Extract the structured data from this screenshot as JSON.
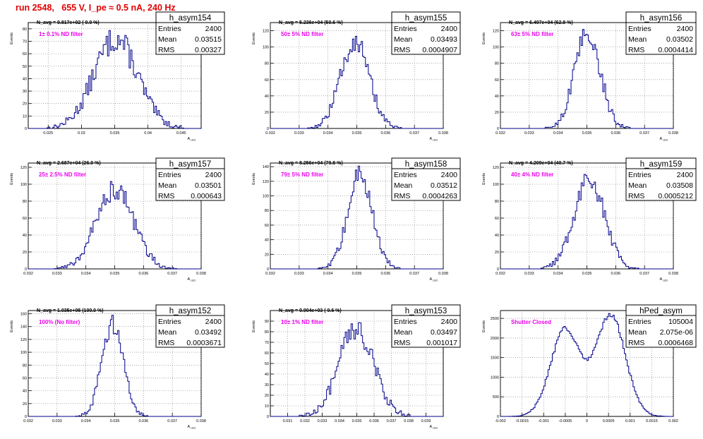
{
  "header": {
    "run_title": "run 2548,   655 V, I_pe ≈ 0.5 nA, 240 Hz"
  },
  "colors": {
    "histogram": "#00008b",
    "annotation_magenta": "#ee00ee",
    "title_red": "#e00000"
  },
  "chart_data": [
    {
      "type": "bar",
      "name": "h_asym154",
      "stats": {
        "entries_label": "Entries",
        "entries": "2400",
        "mean_label": "Mean",
        "mean": "0.03515",
        "rms_label": "RMS",
        "rms": "0.00327"
      },
      "navg": "N_avg = 9.817e+02 ( 0.9 %)",
      "note": "1± 0.1% ND filter",
      "ylabel": "Events",
      "xlabel": "A_LED",
      "xlim": [
        0.022,
        0.048
      ],
      "ylim": [
        0,
        85
      ],
      "xticks": [
        0.025,
        0.03,
        0.035,
        0.04,
        0.045
      ],
      "xtick_labels": [
        "0.025",
        "0.03",
        "0.035",
        "0.04",
        "0.045"
      ],
      "yticks": [
        0,
        10,
        20,
        30,
        40,
        50,
        60,
        70,
        80
      ],
      "ytick_labels": [
        "0",
        "10",
        "20",
        "30",
        "40",
        "50",
        "60",
        "70",
        "80"
      ],
      "gaussian": {
        "mean": 0.03515,
        "sigma": 0.00327,
        "peak": 72
      }
    },
    {
      "type": "bar",
      "name": "h_asym155",
      "stats": {
        "entries_label": "Entries",
        "entries": "2400",
        "mean_label": "Mean",
        "mean": "0.03493",
        "rms_label": "RMS",
        "rms": "0.0004907"
      },
      "navg": "N_avg = 5.236e+04 (50.6 %)",
      "note": "50± 5% ND filter",
      "ylabel": "Events",
      "xlabel": "A_LED",
      "xlim": [
        0.032,
        0.038
      ],
      "ylim": [
        0,
        130
      ],
      "xticks": [
        0.032,
        0.033,
        0.034,
        0.035,
        0.036,
        0.037,
        0.038
      ],
      "xtick_labels": [
        "0.032",
        "0.033",
        "0.034",
        "0.035",
        "0.036",
        "0.037",
        "0.038"
      ],
      "yticks": [
        0,
        20,
        40,
        60,
        80,
        100,
        120
      ],
      "ytick_labels": [
        "0",
        "20",
        "40",
        "60",
        "80",
        "100",
        "120"
      ],
      "gaussian": {
        "mean": 0.03493,
        "sigma": 0.0004907,
        "peak": 108
      }
    },
    {
      "type": "bar",
      "name": "h_asym156",
      "stats": {
        "entries_label": "Entries",
        "entries": "2400",
        "mean_label": "Mean",
        "mean": "0.03502",
        "rms_label": "RMS",
        "rms": "0.0004414"
      },
      "navg": "N_avg = 6.497e+04 (62.8 %)",
      "note": "63± 5% ND filter",
      "ylabel": "Events",
      "xlabel": "A_LED",
      "xlim": [
        0.032,
        0.038
      ],
      "ylim": [
        0,
        130
      ],
      "xticks": [
        0.032,
        0.033,
        0.034,
        0.035,
        0.036,
        0.037,
        0.038
      ],
      "xtick_labels": [
        "0.032",
        "0.033",
        "0.034",
        "0.035",
        "0.036",
        "0.037",
        "0.038"
      ],
      "yticks": [
        0,
        20,
        40,
        60,
        80,
        100,
        120
      ],
      "ytick_labels": [
        "0",
        "20",
        "40",
        "60",
        "80",
        "100",
        "120"
      ],
      "gaussian": {
        "mean": 0.03502,
        "sigma": 0.0004414,
        "peak": 118
      }
    },
    {
      "type": "bar",
      "name": "h_asym157",
      "stats": {
        "entries_label": "Entries",
        "entries": "2400",
        "mean_label": "Mean",
        "mean": "0.03501",
        "rms_label": "RMS",
        "rms": "0.000643"
      },
      "navg": "N_avg = 2.687e+04 (26.0 %)",
      "note": "25± 2.5% ND filter",
      "ylabel": "Events",
      "xlabel": "A_LED",
      "xlim": [
        0.032,
        0.038
      ],
      "ylim": [
        0,
        125
      ],
      "xticks": [
        0.032,
        0.033,
        0.034,
        0.035,
        0.036,
        0.037,
        0.038
      ],
      "xtick_labels": [
        "0.032",
        "0.033",
        "0.034",
        "0.035",
        "0.036",
        "0.037",
        "0.038"
      ],
      "yticks": [
        0,
        20,
        40,
        60,
        80,
        100,
        120
      ],
      "ytick_labels": [
        "0",
        "20",
        "40",
        "60",
        "80",
        "100",
        "120"
      ],
      "gaussian": {
        "mean": 0.03501,
        "sigma": 0.000643,
        "peak": 95
      }
    },
    {
      "type": "bar",
      "name": "h_asym158",
      "stats": {
        "entries_label": "Entries",
        "entries": "2400",
        "mean_label": "Mean",
        "mean": "0.03512",
        "rms_label": "RMS",
        "rms": "0.0004263"
      },
      "navg": "N_avg = 8.256e+04 (79.8 %)",
      "note": "79± 5% ND filter",
      "ylabel": "Events",
      "xlabel": "A_LED",
      "xlim": [
        0.032,
        0.038
      ],
      "ylim": [
        0,
        145
      ],
      "xticks": [
        0.032,
        0.033,
        0.034,
        0.035,
        0.036,
        0.037,
        0.038
      ],
      "xtick_labels": [
        "0.032",
        "0.033",
        "0.034",
        "0.035",
        "0.036",
        "0.037",
        "0.038"
      ],
      "yticks": [
        0,
        20,
        40,
        60,
        80,
        100,
        120,
        140
      ],
      "ytick_labels": [
        "0",
        "20",
        "40",
        "60",
        "80",
        "100",
        "120",
        "140"
      ],
      "gaussian": {
        "mean": 0.03512,
        "sigma": 0.0004263,
        "peak": 130
      }
    },
    {
      "type": "bar",
      "name": "h_asym159",
      "stats": {
        "entries_label": "Entries",
        "entries": "2400",
        "mean_label": "Mean",
        "mean": "0.03508",
        "rms_label": "RMS",
        "rms": "0.0005212"
      },
      "navg": "N_avg = 4.209e+04 (40.7 %)",
      "note": "40± 4% ND filter",
      "ylabel": "Events",
      "xlabel": "A_LED",
      "xlim": [
        0.032,
        0.038
      ],
      "ylim": [
        0,
        125
      ],
      "xticks": [
        0.032,
        0.033,
        0.034,
        0.035,
        0.036,
        0.037,
        0.038
      ],
      "xtick_labels": [
        "0.032",
        "0.033",
        "0.034",
        "0.035",
        "0.036",
        "0.037",
        "0.038"
      ],
      "yticks": [
        0,
        20,
        40,
        60,
        80,
        100,
        120
      ],
      "ytick_labels": [
        "0",
        "20",
        "40",
        "60",
        "80",
        "100",
        "120"
      ],
      "gaussian": {
        "mean": 0.03508,
        "sigma": 0.0005212,
        "peak": 108
      }
    },
    {
      "type": "bar",
      "name": "h_asym152",
      "stats": {
        "entries_label": "Entries",
        "entries": "2400",
        "mean_label": "Mean",
        "mean": "0.03492",
        "rms_label": "RMS",
        "rms": "0.0003671"
      },
      "navg": "N_avg = 1.035e+05 (100.0 %)",
      "note": "100% (No filter)",
      "ylabel": "Events",
      "xlabel": "A_LED",
      "xlim": [
        0.032,
        0.038
      ],
      "ylim": [
        0,
        165
      ],
      "xticks": [
        0.032,
        0.033,
        0.034,
        0.035,
        0.036,
        0.037,
        0.038
      ],
      "xtick_labels": [
        "0.032",
        "0.033",
        "0.034",
        "0.035",
        "0.036",
        "0.037",
        "0.038"
      ],
      "yticks": [
        0,
        20,
        40,
        60,
        80,
        100,
        120,
        140,
        160
      ],
      "ytick_labels": [
        "0",
        "20",
        "40",
        "60",
        "80",
        "100",
        "120",
        "140",
        "160"
      ],
      "gaussian": {
        "mean": 0.03492,
        "sigma": 0.0003671,
        "peak": 145
      }
    },
    {
      "type": "bar",
      "name": "h_asym153",
      "stats": {
        "entries_label": "Entries",
        "entries": "2400",
        "mean_label": "Mean",
        "mean": "0.03497",
        "rms_label": "RMS",
        "rms": "0.001017"
      },
      "navg": "N_avg = 9.904e+03 ( 9.6 %)",
      "note": "10± 1% ND filter",
      "ylabel": "Events",
      "xlabel": "A_LED",
      "xlim": [
        0.03,
        0.04
      ],
      "ylim": [
        0,
        100
      ],
      "xticks": [
        0.031,
        0.032,
        0.033,
        0.034,
        0.035,
        0.036,
        0.037,
        0.038,
        0.039
      ],
      "xtick_labels": [
        "0.031",
        "0.032",
        "0.033",
        "0.034",
        "0.035",
        "0.036",
        "0.037",
        "0.038",
        "0.039"
      ],
      "yticks": [
        0,
        10,
        20,
        30,
        40,
        50,
        60,
        70,
        80,
        90
      ],
      "ytick_labels": [
        "0",
        "10",
        "20",
        "30",
        "40",
        "50",
        "60",
        "70",
        "80",
        "90"
      ],
      "gaussian": {
        "mean": 0.03497,
        "sigma": 0.001017,
        "peak": 82
      }
    },
    {
      "type": "bar",
      "name": "hPed_asym",
      "stats": {
        "entries_label": "Entries",
        "entries": "105004",
        "mean_label": "Mean",
        "mean": "2.075e-06",
        "rms_label": "RMS",
        "rms": "0.0006468"
      },
      "navg": "",
      "note": "Shutter Closed",
      "ylabel": "Events",
      "xlabel": "",
      "xlim": [
        -0.002,
        0.002
      ],
      "ylim": [
        0,
        2700
      ],
      "xticks": [
        -0.002,
        -0.0015,
        -0.001,
        -0.0005,
        0,
        0.0005,
        0.001,
        0.0015,
        0.002
      ],
      "xtick_labels": [
        "-0.002",
        "-0.0015",
        "-0.001",
        "-0.0005",
        "0",
        "0.0005",
        "0.001",
        "0.0015",
        "0.002"
      ],
      "yticks": [
        0,
        500,
        1000,
        1500,
        2000,
        2500
      ],
      "ytick_labels": [
        "0",
        "500",
        "1000",
        "1500",
        "2000",
        "2500"
      ],
      "bimodal": {
        "centers": [
          -0.0005,
          0.00055
        ],
        "sigma": 0.00034,
        "peaks": [
          2220,
          2580
        ]
      }
    }
  ]
}
